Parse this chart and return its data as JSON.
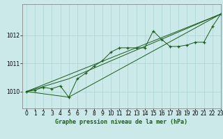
{
  "bg_color": "#cce9ea",
  "grid_color": "#aad4d4",
  "line_color": "#1a5c1a",
  "xlabel": "Graphe pression niveau de la mer (hPa)",
  "xlim": [
    -0.5,
    23
  ],
  "ylim": [
    1009.4,
    1013.1
  ],
  "yticks": [
    1010,
    1011,
    1012
  ],
  "xticks": [
    0,
    1,
    2,
    3,
    4,
    5,
    6,
    7,
    8,
    9,
    10,
    11,
    12,
    13,
    14,
    15,
    16,
    17,
    18,
    19,
    20,
    21,
    22,
    23
  ],
  "series1": {
    "x": [
      0,
      1,
      2,
      3,
      4,
      5,
      6,
      7,
      8,
      9,
      10,
      11,
      12,
      13,
      14,
      15,
      16,
      17,
      18,
      19,
      20,
      21,
      22,
      23
    ],
    "y": [
      1010.0,
      1010.05,
      1010.15,
      1010.1,
      1010.2,
      1009.8,
      1010.45,
      1010.65,
      1010.9,
      1011.1,
      1011.4,
      1011.55,
      1011.55,
      1011.55,
      1011.55,
      1012.15,
      1011.85,
      1011.6,
      1011.6,
      1011.65,
      1011.75,
      1011.75,
      1012.3,
      1012.75
    ]
  },
  "series2": {
    "x": [
      0,
      23
    ],
    "y": [
      1010.0,
      1012.75
    ]
  },
  "series3": {
    "x": [
      0,
      5,
      23
    ],
    "y": [
      1010.0,
      1009.8,
      1012.75
    ]
  },
  "series4": {
    "x": [
      0,
      5,
      23
    ],
    "y": [
      1010.0,
      1010.45,
      1012.75
    ]
  }
}
